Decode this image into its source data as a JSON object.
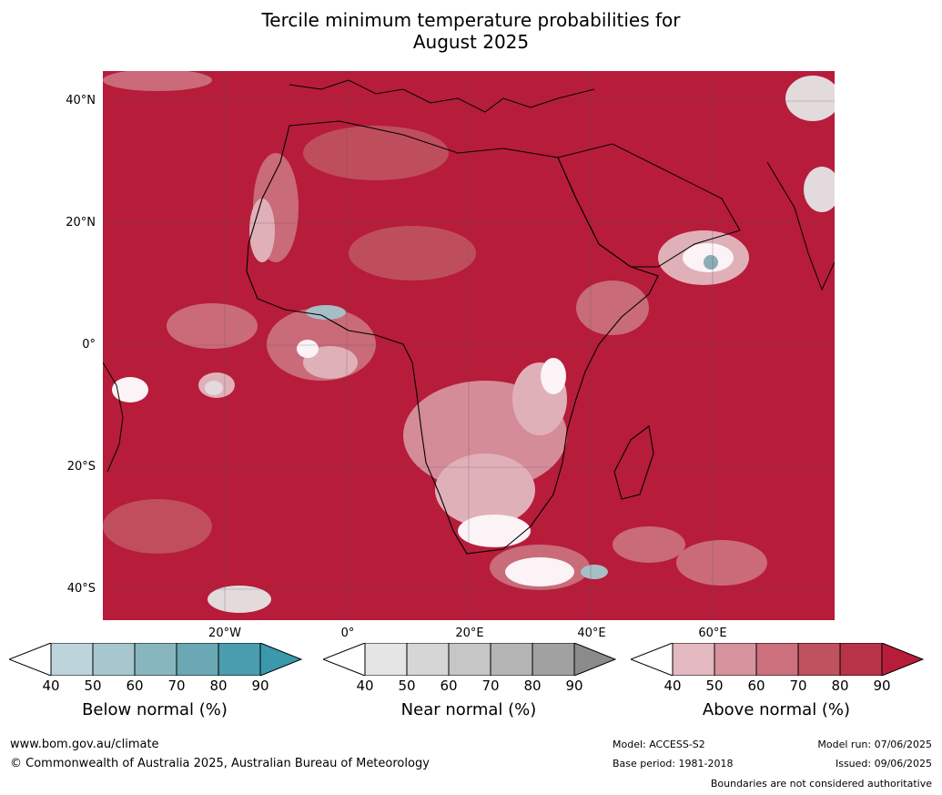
{
  "title": {
    "line1": "Tercile minimum temperature probabilities for",
    "line2": "August 2025"
  },
  "map": {
    "region": "Africa",
    "lat_labels": [
      "40°N",
      "20°N",
      "0°",
      "20°S",
      "40°S"
    ],
    "lon_labels": [
      "20°W",
      "0°",
      "20°E",
      "40°E",
      "60°E"
    ],
    "dominant_color": "#b71c3b"
  },
  "colorbars": [
    {
      "title": "Below normal (%)",
      "ticks": [
        "40",
        "50",
        "60",
        "70",
        "80",
        "90"
      ],
      "colors": [
        "#ffffff",
        "#bdd4db",
        "#a6c7ce",
        "#88b6bf",
        "#6aa8b4",
        "#4a9dae",
        "#3a99ac"
      ]
    },
    {
      "title": "Near normal (%)",
      "ticks": [
        "40",
        "50",
        "60",
        "70",
        "80",
        "90"
      ],
      "colors": [
        "#ffffff",
        "#e5e5e5",
        "#d6d6d6",
        "#c6c6c6",
        "#b5b5b5",
        "#a1a1a1",
        "#8b8b8b"
      ]
    },
    {
      "title": "Above normal (%)",
      "ticks": [
        "40",
        "50",
        "60",
        "70",
        "80",
        "90"
      ],
      "colors": [
        "#ffffff",
        "#e3b8c0",
        "#d6929d",
        "#cb707c",
        "#c0515f",
        "#b73347",
        "#b71c3b"
      ]
    }
  ],
  "footer": {
    "website": "www.bom.gov.au/climate",
    "copyright": "© Commonwealth of Australia 2025, Australian Bureau of Meteorology",
    "model": "Model: ACCESS-S2",
    "base_period": "Base period: 1981-2018",
    "model_run": "Model run: 07/06/2025",
    "issued": "Issued: 09/06/2025",
    "disclaimer": "Boundaries are not considered authoritative"
  }
}
